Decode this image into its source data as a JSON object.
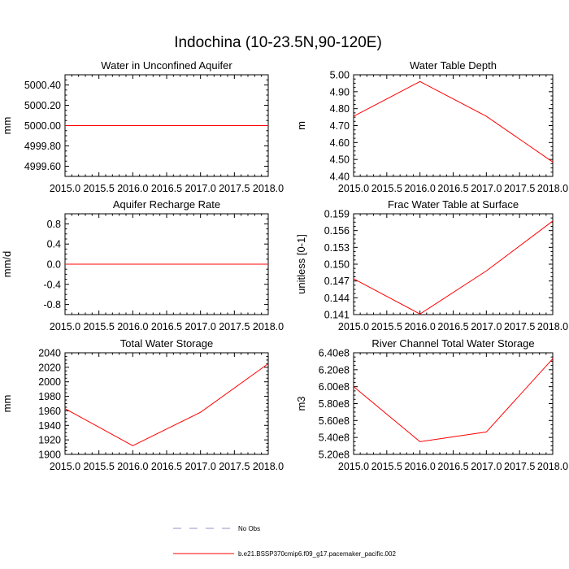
{
  "title": "Indochina (10-23.5N,90-120E)",
  "colors": {
    "series": "#ff0000",
    "no_obs": "#9393c9",
    "axis": "#000000"
  },
  "legend": [
    {
      "label": "No Obs",
      "style": "dashed",
      "color": "#9393c9"
    },
    {
      "label": "b.e21.BSSP370cmip6.f09_g17.pacemaker_pacific.002",
      "style": "solid",
      "color": "#ff0000"
    }
  ],
  "chart_data": [
    {
      "type": "line",
      "title": "Water in Unconfined Aquifer",
      "ylabel": "mm",
      "xlim": [
        2015.0,
        2018.0
      ],
      "ylim": [
        4999.5,
        5000.5
      ],
      "x_ticks": [
        "2015.0",
        "2015.5",
        "2016.0",
        "2016.5",
        "2017.0",
        "2017.5",
        "2018.0"
      ],
      "y_ticks": [
        {
          "v": 4999.6,
          "label": "4999.60"
        },
        {
          "v": 4999.8,
          "label": "4999.80"
        },
        {
          "v": 5000.0,
          "label": "5000.00"
        },
        {
          "v": 5000.2,
          "label": "5000.20"
        },
        {
          "v": 5000.4,
          "label": "5000.40"
        }
      ],
      "x": [
        2015,
        2016,
        2017,
        2018
      ],
      "series": [
        {
          "values": [
            5000.0,
            5000.0,
            5000.0,
            5000.0
          ]
        }
      ]
    },
    {
      "type": "line",
      "title": "Water Table Depth",
      "ylabel": "m",
      "xlim": [
        2015.0,
        2018.0
      ],
      "ylim": [
        4.4,
        5.0
      ],
      "x_ticks": [
        "2015.0",
        "2015.5",
        "2016.0",
        "2016.5",
        "2017.0",
        "2017.5",
        "2018.0"
      ],
      "y_ticks": [
        {
          "v": 4.4,
          "label": "4.40"
        },
        {
          "v": 4.5,
          "label": "4.50"
        },
        {
          "v": 4.6,
          "label": "4.60"
        },
        {
          "v": 4.7,
          "label": "4.70"
        },
        {
          "v": 4.8,
          "label": "4.80"
        },
        {
          "v": 4.9,
          "label": "4.90"
        },
        {
          "v": 5.0,
          "label": "5.00"
        }
      ],
      "x": [
        2015,
        2016,
        2017,
        2018
      ],
      "series": [
        {
          "values": [
            4.755,
            4.96,
            4.755,
            4.485
          ]
        }
      ]
    },
    {
      "type": "line",
      "title": "Aquifer Recharge Rate",
      "ylabel": "mm/d",
      "xlim": [
        2015.0,
        2018.0
      ],
      "ylim": [
        -1.0,
        1.0
      ],
      "x_ticks": [
        "2015.0",
        "2015.5",
        "2016.0",
        "2016.5",
        "2017.0",
        "2017.5",
        "2018.0"
      ],
      "y_ticks": [
        {
          "v": -0.8,
          "label": "-0.8"
        },
        {
          "v": -0.4,
          "label": "-0.4"
        },
        {
          "v": 0.0,
          "label": "0.0"
        },
        {
          "v": 0.4,
          "label": "0.4"
        },
        {
          "v": 0.8,
          "label": "0.8"
        }
      ],
      "x": [
        2015,
        2016,
        2017,
        2018
      ],
      "series": [
        {
          "values": [
            0.0,
            0.0,
            0.0,
            0.0
          ]
        }
      ]
    },
    {
      "type": "line",
      "title": "Frac Water Table at Surface",
      "ylabel": "unitless [0-1]",
      "xlim": [
        2015.0,
        2018.0
      ],
      "ylim": [
        0.141,
        0.159
      ],
      "x_ticks": [
        "2015.0",
        "2015.5",
        "2016.0",
        "2016.5",
        "2017.0",
        "2017.5",
        "2018.0"
      ],
      "y_ticks": [
        {
          "v": 0.141,
          "label": "0.141"
        },
        {
          "v": 0.144,
          "label": "0.144"
        },
        {
          "v": 0.147,
          "label": "0.147"
        },
        {
          "v": 0.15,
          "label": "0.150"
        },
        {
          "v": 0.153,
          "label": "0.153"
        },
        {
          "v": 0.156,
          "label": "0.156"
        },
        {
          "v": 0.159,
          "label": "0.159"
        }
      ],
      "x": [
        2015,
        2016,
        2017,
        2018
      ],
      "series": [
        {
          "values": [
            0.1474,
            0.1411,
            0.1488,
            0.1577
          ]
        }
      ]
    },
    {
      "type": "line",
      "title": "Total Water Storage",
      "ylabel": "mm",
      "xlim": [
        2015.0,
        2018.0
      ],
      "ylim": [
        1900,
        2040
      ],
      "x_ticks": [
        "2015.0",
        "2015.5",
        "2016.0",
        "2016.5",
        "2017.0",
        "2017.5",
        "2018.0"
      ],
      "y_ticks": [
        {
          "v": 1900,
          "label": "1900"
        },
        {
          "v": 1920,
          "label": "1920"
        },
        {
          "v": 1940,
          "label": "1940"
        },
        {
          "v": 1960,
          "label": "1960"
        },
        {
          "v": 1980,
          "label": "1980"
        },
        {
          "v": 2000,
          "label": "2000"
        },
        {
          "v": 2020,
          "label": "2020"
        },
        {
          "v": 2040,
          "label": "2040"
        }
      ],
      "x": [
        2015,
        2016,
        2017,
        2018
      ],
      "series": [
        {
          "values": [
            1963,
            1912,
            1958,
            2025
          ]
        }
      ]
    },
    {
      "type": "line",
      "title": "River Channel Total Water Storage",
      "ylabel": "m3",
      "xlim": [
        2015.0,
        2018.0
      ],
      "ylim": [
        520000000.0,
        640000000.0
      ],
      "x_ticks": [
        "2015.0",
        "2015.5",
        "2016.0",
        "2016.5",
        "2017.0",
        "2017.5",
        "2018.0"
      ],
      "y_ticks": [
        {
          "v": 520000000.0,
          "label": "5.20e8"
        },
        {
          "v": 540000000.0,
          "label": "5.40e8"
        },
        {
          "v": 560000000.0,
          "label": "5.60e8"
        },
        {
          "v": 580000000.0,
          "label": "5.80e8"
        },
        {
          "v": 600000000.0,
          "label": "6.00e8"
        },
        {
          "v": 620000000.0,
          "label": "6.20e8"
        },
        {
          "v": 640000000.0,
          "label": "6.40e8"
        }
      ],
      "x": [
        2015,
        2016,
        2017,
        2018
      ],
      "series": [
        {
          "values": [
            600000000.0,
            535000000.0,
            546500000.0,
            633000000.0
          ]
        }
      ]
    }
  ]
}
